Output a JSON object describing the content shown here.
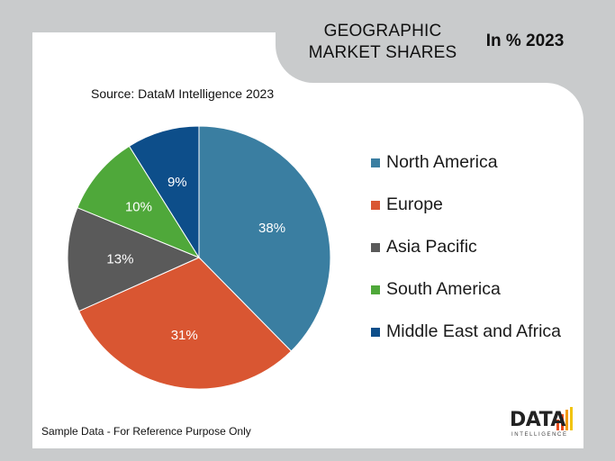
{
  "header": {
    "title_line1": "GEOGRAPHIC",
    "title_line2": "MARKET SHARES",
    "year_label": "In % 2023"
  },
  "source": "Source: DataM Intelligence 2023",
  "footer_note": "Sample Data - For Reference Purpose Only",
  "logo": {
    "text": "DATA",
    "subtext": "INTELLIGENCE"
  },
  "chart_data": {
    "type": "pie",
    "categories": [
      "North America",
      "Europe",
      "Asia Pacific",
      "South America",
      "Middle East and Africa"
    ],
    "values": [
      38,
      31,
      13,
      10,
      9
    ],
    "value_labels": [
      "38%",
      "31%",
      "13%",
      "10%",
      "9%"
    ],
    "colors": [
      "#3a7ea1",
      "#d95632",
      "#5a5a5a",
      "#4fa83a",
      "#0d4e8a"
    ],
    "legend_position": "right"
  }
}
